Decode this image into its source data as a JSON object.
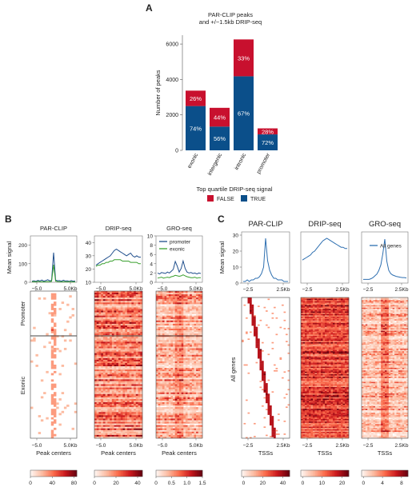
{
  "panels": {
    "A": "A",
    "B": "B",
    "C": "C"
  },
  "colors": {
    "false": "#c8102e",
    "true": "#0b4f8a",
    "line_promoter": "#1f4e8c",
    "line_exonic": "#3aa02f",
    "line_all": "#2e6fb0"
  },
  "chart_data": [
    {
      "id": "A",
      "type": "bar",
      "title": "PAR-CLIP peaks\nand +/−1.5kb DRIP-seq",
      "ylabel": "Number of peaks",
      "ylim": [
        0,
        6500
      ],
      "yticks": [
        0,
        2000,
        4000,
        6000
      ],
      "categories": [
        "exonic",
        "intergenic",
        "intronic",
        "promoter"
      ],
      "series": [
        {
          "name": "TRUE",
          "values": [
            2500,
            1340,
            4180,
            900
          ],
          "labels": [
            "74%",
            "56%",
            "67%",
            "72%"
          ]
        },
        {
          "name": "FALSE",
          "values": [
            870,
            1060,
            2080,
            340
          ],
          "labels": [
            "26%",
            "44%",
            "33%",
            "28%"
          ]
        }
      ],
      "legend_title": "Top quartile DRIP-seq signal",
      "legend": [
        "FALSE",
        "TRUE"
      ]
    },
    {
      "id": "B-profiles",
      "type": "line",
      "ylabel": "Mean signal",
      "xtick_labels": [
        "−5.0",
        "5.0Kb"
      ],
      "panels": [
        {
          "title": "PAR-CLIP",
          "yticks": [
            0,
            100,
            200
          ],
          "ylim": [
            0,
            250
          ],
          "series": [
            {
              "name": "promoter",
              "values": [
                6,
                8,
                5,
                10,
                7,
                12,
                6,
                9,
                14,
                8,
                10,
                160,
                12,
                8,
                9,
                6,
                11,
                7,
                8,
                5,
                9,
                6,
                7
              ]
            },
            {
              "name": "exonic",
              "values": [
                3,
                4,
                2,
                5,
                3,
                4,
                2,
                3,
                4,
                3,
                5,
                95,
                6,
                4,
                3,
                2,
                4,
                3,
                2,
                4,
                3,
                2,
                3
              ]
            }
          ]
        },
        {
          "title": "DRIP-seq",
          "yticks": [
            10,
            20,
            30,
            40
          ],
          "ylim": [
            10,
            45
          ],
          "series": [
            {
              "name": "promoter",
              "values": [
                23,
                24,
                25,
                26,
                27,
                28,
                29,
                30,
                32,
                34,
                35,
                34,
                33,
                32,
                31,
                30,
                31,
                32,
                30,
                29,
                30,
                29,
                29
              ]
            },
            {
              "name": "exonic",
              "values": [
                22,
                23,
                23,
                24,
                24,
                25,
                25,
                26,
                26,
                27,
                27,
                27,
                27,
                26,
                26,
                26,
                26,
                25,
                25,
                25,
                25,
                24,
                24
              ]
            }
          ]
        },
        {
          "title": "GRO-seq",
          "yticks": [
            0,
            2,
            4,
            6,
            8,
            10
          ],
          "ylim": [
            0,
            10
          ],
          "series": [
            {
              "name": "promoter",
              "values": [
                2.0,
                1.8,
                2.1,
                2.0,
                1.9,
                2.2,
                2.0,
                2.4,
                2.8,
                4.5,
                3.5,
                2.2,
                3.0,
                4.6,
                3.0,
                2.2,
                2.0,
                2.1,
                1.9,
                2.0,
                1.8,
                2.0,
                1.9
              ]
            },
            {
              "name": "exonic",
              "values": [
                0.9,
                1.0,
                1.1,
                0.9,
                1.0,
                1.1,
                1.0,
                1.2,
                1.3,
                1.5,
                1.4,
                1.3,
                1.4,
                1.6,
                1.4,
                1.2,
                1.1,
                1.0,
                1.0,
                1.1,
                0.9,
                1.0,
                1.0
              ]
            }
          ]
        }
      ],
      "legend": [
        "promoter",
        "exonic"
      ]
    },
    {
      "id": "B-heatmaps",
      "type": "heatmap",
      "row_groups": [
        "Promoter",
        "Exonic"
      ],
      "xlabel": "Peak centers",
      "xtick_labels": [
        "−5.0",
        "5.0Kb"
      ],
      "colorbars": [
        {
          "ticks": [
            "0",
            "40",
            "80"
          ]
        },
        {
          "ticks": [
            "0",
            "20",
            "40"
          ]
        },
        {
          "ticks": [
            "0",
            "0.5",
            "1.0",
            "1.5"
          ]
        }
      ]
    },
    {
      "id": "C-profiles",
      "type": "line",
      "ylabel": "Mean signal",
      "xtick_labels": [
        "−2.5",
        "2.5Kb"
      ],
      "panels": [
        {
          "title": "PAR-CLIP",
          "yticks": [
            0,
            10,
            20,
            30
          ],
          "ylim": [
            0,
            32
          ],
          "series": [
            {
              "name": "All genes",
              "values": [
                1,
                1,
                2,
                1,
                2,
                2,
                3,
                3,
                4,
                6,
                10,
                28,
                14,
                8,
                5,
                3,
                3,
                2,
                2,
                2,
                1,
                1,
                1
              ]
            }
          ]
        },
        {
          "title": "DRIP-seq",
          "yticks": [],
          "ylim": [
            0,
            40
          ],
          "series": [
            {
              "name": "All genes",
              "values": [
                18,
                19,
                20,
                21,
                22,
                24,
                25,
                27,
                29,
                31,
                33,
                34,
                35,
                34,
                33,
                32,
                31,
                30,
                29,
                28,
                28,
                27,
                27
              ]
            }
          ]
        },
        {
          "title": "GRO-seq",
          "yticks": [],
          "ylim": [
            0,
            14
          ],
          "series": [
            {
              "name": "All genes",
              "values": [
                1,
                1,
                1,
                1,
                1.2,
                1.5,
                2,
                2.5,
                3.5,
                5,
                8,
                12,
                6,
                3.5,
                2.6,
                2.2,
                2,
                1.8,
                1.7,
                1.6,
                1.5,
                1.5,
                1.4
              ]
            }
          ]
        }
      ],
      "legend": [
        "All genes"
      ]
    },
    {
      "id": "C-heatmaps",
      "type": "heatmap",
      "row_groups": [
        "All genes"
      ],
      "xlabel": "TSSs",
      "xtick_labels": [
        "−2.5",
        "2.5Kb"
      ],
      "colorbars": [
        {
          "ticks": [
            "0",
            "20",
            "40"
          ]
        },
        {
          "ticks": [
            "0",
            "10",
            "20"
          ]
        },
        {
          "ticks": [
            "0",
            "4",
            "8"
          ]
        }
      ]
    }
  ]
}
